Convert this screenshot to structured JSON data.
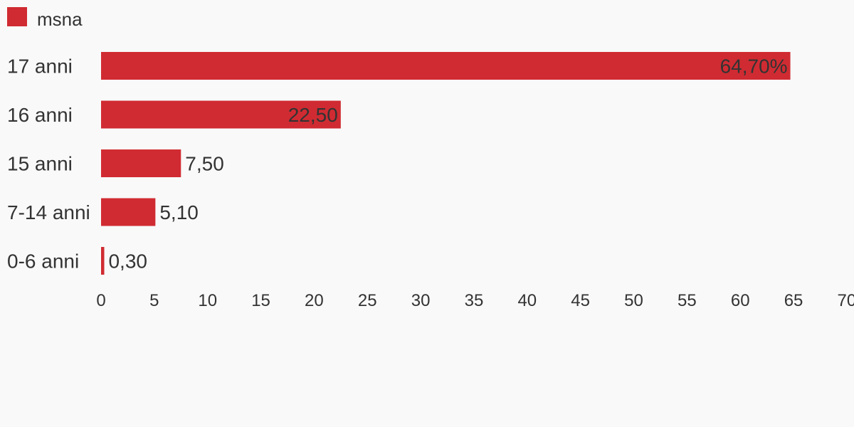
{
  "chart_data": {
    "type": "bar",
    "orientation": "horizontal",
    "legend": {
      "position": "top-left",
      "entries": [
        "msna"
      ]
    },
    "categories": [
      "17 anni",
      "16 anni",
      "15 anni",
      "7-14 anni",
      "0-6 anni"
    ],
    "series": [
      {
        "name": "msna",
        "color": "#d02b32",
        "values": [
          64.7,
          22.5,
          7.5,
          5.1,
          0.3
        ],
        "labels": [
          "64,70%",
          "22,50",
          "7,50",
          "5,10",
          "0,30"
        ]
      }
    ],
    "xlim": [
      0,
      70
    ],
    "xticks": [
      "0",
      "5",
      "10",
      "15",
      "20",
      "25",
      "30",
      "35",
      "40",
      "45",
      "50",
      "55",
      "60",
      "65",
      "70"
    ],
    "grid": false,
    "colors": {
      "bar": "#d02b32",
      "text": "#333333",
      "background": "#f9f9f9"
    }
  }
}
